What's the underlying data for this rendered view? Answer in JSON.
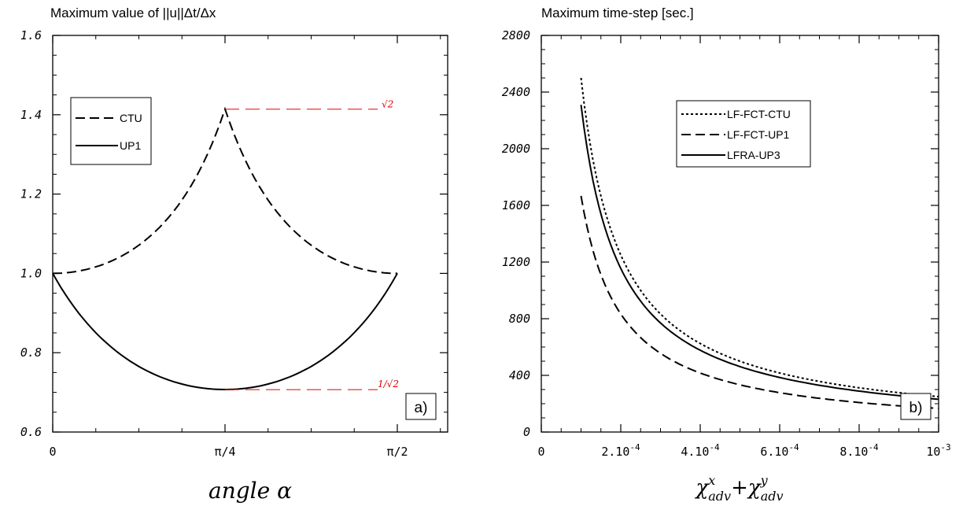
{
  "chart_data": [
    {
      "type": "line",
      "title": "Maximum value of ||u||Δt/Δx",
      "xlabel": "angle α",
      "ylabel": "",
      "xlim": [
        0,
        1.5708
      ],
      "ylim": [
        0.6,
        1.6
      ],
      "x_tick_labels": [
        {
          "x": 0,
          "label": "0"
        },
        {
          "x": 0.7854,
          "label": "π/4"
        },
        {
          "x": 1.5708,
          "label": "π/2"
        }
      ],
      "y_tick_labels": [
        "0.6",
        "0.8",
        "1.0",
        "1.2",
        "1.4",
        "1.6"
      ],
      "legend": {
        "placement": "upper-left",
        "entries": [
          "CTU",
          "UP1"
        ]
      },
      "series": [
        {
          "name": "CTU",
          "style": "dashed",
          "formula": "sinα+cosα for α≤π/4, mirrored; 1/(cos²+sin²) shaped",
          "x": [
            0,
            0.1963,
            0.3927,
            0.589,
            0.7854,
            0.9817,
            1.1781,
            1.3744,
            1.5708
          ],
          "y": [
            1.0,
            1.02,
            1.08,
            1.2,
            1.414,
            1.2,
            1.08,
            1.02,
            1.0
          ]
        },
        {
          "name": "UP1",
          "style": "solid",
          "x": [
            0,
            0.1963,
            0.3927,
            0.589,
            0.7854,
            0.9817,
            1.1781,
            1.3744,
            1.5708
          ],
          "y": [
            1.0,
            0.86,
            0.77,
            0.72,
            0.707,
            0.72,
            0.77,
            0.86,
            1.0
          ]
        }
      ],
      "annotations": [
        {
          "text": "√2",
          "y": 1.414,
          "color": "#e00000"
        },
        {
          "text": "1/√2",
          "y": 0.707,
          "color": "#e00000"
        }
      ],
      "panel_label": "a)"
    },
    {
      "type": "line",
      "title": "Maximum time-step [sec.]",
      "xlabel": "χx_adv + χy_adv",
      "ylabel": "",
      "xlim": [
        0,
        0.001
      ],
      "ylim": [
        0,
        2800
      ],
      "x_tick_labels": [
        {
          "x": 0,
          "label": "0"
        },
        {
          "x": 0.0002,
          "label": "2.10",
          "exp": "-4"
        },
        {
          "x": 0.0004,
          "label": "4.10",
          "exp": "-4"
        },
        {
          "x": 0.0006,
          "label": "6.10",
          "exp": "-4"
        },
        {
          "x": 0.0008,
          "label": "8.10",
          "exp": "-4"
        },
        {
          "x": 0.001,
          "label": "10",
          "exp": "-3"
        }
      ],
      "y_tick_labels": [
        "0",
        "400",
        "800",
        "1200",
        "1600",
        "2000",
        "2400",
        "2800"
      ],
      "legend": {
        "placement": "upper-center",
        "entries": [
          "LF-FCT-CTU",
          "LF-FCT-UP1",
          "LFRA-UP3"
        ]
      },
      "series": [
        {
          "name": "LF-FCT-CTU",
          "style": "dotted",
          "x": [
            0.0001,
            0.0002,
            0.0003,
            0.0004,
            0.0005,
            0.0006,
            0.0007,
            0.0008,
            0.0009,
            0.001
          ],
          "y": [
            2500,
            1250,
            833,
            625,
            500,
            417,
            357,
            313,
            278,
            250
          ]
        },
        {
          "name": "LF-FCT-UP1",
          "style": "dashed",
          "x": [
            0.0001,
            0.0002,
            0.0003,
            0.0004,
            0.0005,
            0.0006,
            0.0007,
            0.0008,
            0.0009,
            0.001
          ],
          "y": [
            1667,
            833,
            556,
            417,
            333,
            278,
            238,
            208,
            185,
            167
          ]
        },
        {
          "name": "LFRA-UP3",
          "style": "solid",
          "x": [
            0.0001,
            0.0002,
            0.0003,
            0.0004,
            0.0005,
            0.0006,
            0.0007,
            0.0008,
            0.0009,
            0.001
          ],
          "y": [
            2310,
            1155,
            770,
            578,
            462,
            385,
            330,
            289,
            257,
            231
          ]
        }
      ],
      "panel_label": "b)"
    }
  ]
}
